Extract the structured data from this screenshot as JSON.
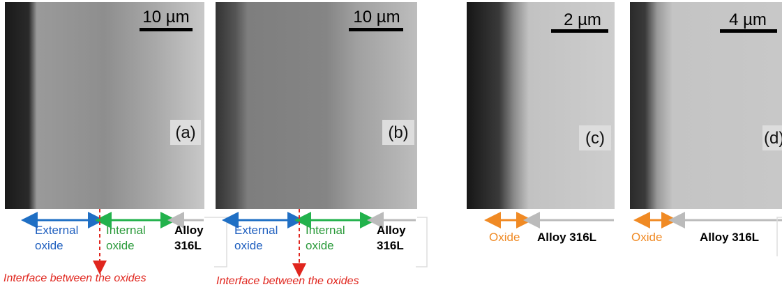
{
  "panels": [
    {
      "label": "(a)",
      "scale_bar": "10 µm",
      "regions": [
        [
          "External",
          "oxide"
        ],
        [
          "Internal",
          "oxide"
        ],
        [
          "Alloy",
          "316L"
        ]
      ],
      "interface": "Interface between the oxides"
    },
    {
      "label": "(b)",
      "scale_bar": "10 µm",
      "regions": [
        [
          "External",
          "oxide"
        ],
        [
          "Internal",
          "oxide"
        ],
        [
          "Alloy",
          "316L"
        ]
      ],
      "interface": "Interface between the oxides"
    },
    {
      "label": "(c)",
      "scale_bar": "2 µm",
      "regions": [
        "Oxide",
        "Alloy 316L"
      ]
    },
    {
      "label": "(d)",
      "scale_bar": "4 µm",
      "regions": [
        "Oxide",
        "Alloy 316L"
      ]
    }
  ]
}
